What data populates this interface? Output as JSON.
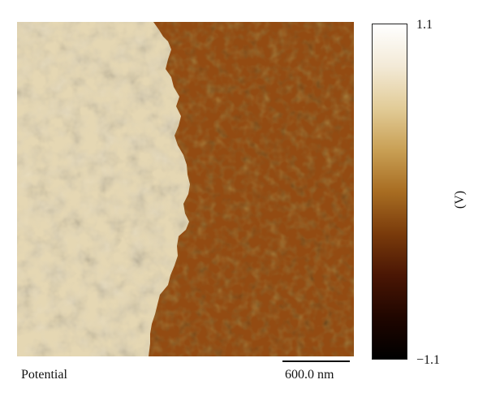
{
  "figure": {
    "caption": "Potential",
    "scale_bar": {
      "label": "600.0 nm"
    },
    "colorbar": {
      "max_label": "1.1",
      "min_label": "−1.1",
      "unit_label": "(V)",
      "gradient_colors": [
        "#ffffff",
        "#f3ead7",
        "#e2cc98",
        "#c9a055",
        "#a86d22",
        "#7a3b0b",
        "#4a1604",
        "#200600",
        "#000000"
      ]
    },
    "image": {
      "left_domain_color": "#e5d7b3",
      "right_domain_color": "#934b12"
    }
  }
}
